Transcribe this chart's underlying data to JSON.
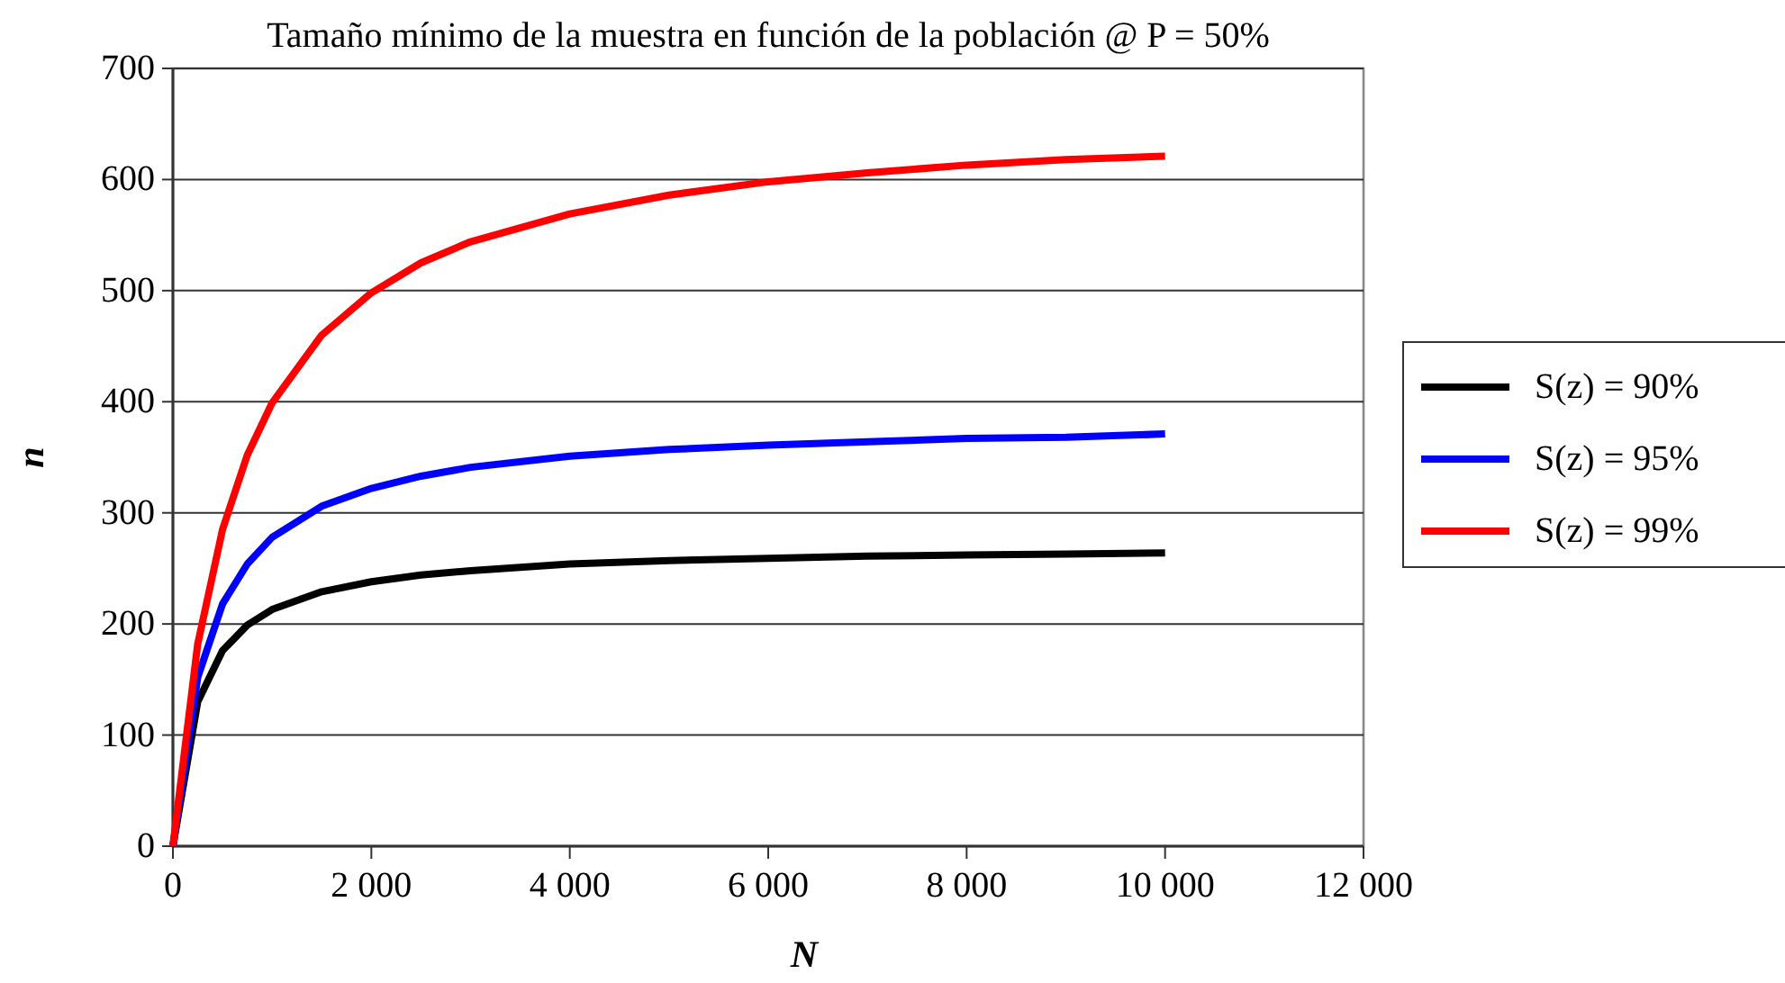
{
  "chart_data": {
    "type": "line",
    "title": "Tamaño mínimo de la muestra en función de la población @ P = 50%",
    "xlabel": "N",
    "ylabel": "n",
    "x": [
      0,
      250,
      500,
      750,
      1000,
      1500,
      2000,
      2500,
      3000,
      4000,
      5000,
      6000,
      7000,
      8000,
      9000,
      10000
    ],
    "series": [
      {
        "name": "S(z) = 90%",
        "color": "#000000",
        "values": [
          0,
          130,
          176,
          199,
          213,
          229,
          238,
          244,
          248,
          254,
          257,
          259,
          261,
          262,
          263,
          264
        ]
      },
      {
        "name": "S(z) = 95%",
        "color": "#0000ff",
        "values": [
          0,
          152,
          218,
          254,
          278,
          306,
          322,
          333,
          341,
          351,
          357,
          361,
          364,
          367,
          368,
          371
        ]
      },
      {
        "name": "S(z) = 99%",
        "color": "#ff0000",
        "values": [
          0,
          182,
          285,
          352,
          399,
          460,
          498,
          525,
          544,
          569,
          586,
          598,
          606,
          613,
          618,
          621
        ]
      }
    ],
    "xlim": [
      0,
      12000
    ],
    "xticks": [
      0,
      {
        "value": 2000,
        "label": "2 000"
      },
      {
        "value": 4000,
        "label": "4 000"
      },
      {
        "value": 6000,
        "label": "6 000"
      },
      {
        "value": 8000,
        "label": "8 000"
      },
      {
        "value": 10000,
        "label": "10 000"
      },
      {
        "value": 12000,
        "label": "12 000"
      }
    ],
    "ylim": [
      0,
      700
    ],
    "yticks": [
      0,
      100,
      200,
      300,
      400,
      500,
      600,
      700
    ],
    "grid": "y",
    "legend": "right",
    "line_style": "solid"
  }
}
